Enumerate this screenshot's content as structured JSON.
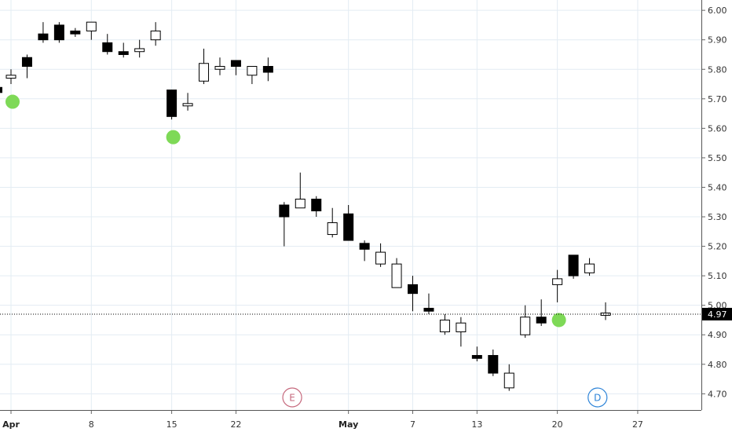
{
  "chart_data": {
    "type": "candlestick",
    "title": "",
    "xlabel": "",
    "ylabel": "",
    "ylim": [
      4.645,
      6.035
    ],
    "grid": true,
    "y_ticks": [
      "6.00",
      "5.90",
      "5.80",
      "5.70",
      "5.60",
      "5.50",
      "5.40",
      "5.30",
      "5.20",
      "5.10",
      "5.00",
      "4.90",
      "4.80",
      "4.70"
    ],
    "x_ticks": [
      {
        "label": "Apr",
        "bar": 0,
        "major": true
      },
      {
        "label": "8",
        "bar": 5,
        "major": false
      },
      {
        "label": "15",
        "bar": 10,
        "major": false
      },
      {
        "label": "22",
        "bar": 14,
        "major": false
      },
      {
        "label": "May",
        "bar": 21,
        "major": true
      },
      {
        "label": "7",
        "bar": 25,
        "major": false
      },
      {
        "label": "13",
        "bar": 29,
        "major": false
      },
      {
        "label": "20",
        "bar": 34,
        "major": false
      },
      {
        "label": "27",
        "bar": 39,
        "major": false
      }
    ],
    "bars": [
      {
        "x": "",
        "o": 5.77,
        "h": 5.8,
        "l": 5.75,
        "c": 5.78
      },
      {
        "x": "",
        "o": 5.84,
        "h": 5.85,
        "l": 5.77,
        "c": 5.81
      },
      {
        "x": "",
        "o": 5.92,
        "h": 5.96,
        "l": 5.89,
        "c": 5.9
      },
      {
        "x": "",
        "o": 5.95,
        "h": 5.96,
        "l": 5.89,
        "c": 5.9
      },
      {
        "x": "",
        "o": 5.93,
        "h": 5.94,
        "l": 5.91,
        "c": 5.92
      },
      {
        "x": "",
        "o": 5.93,
        "h": 5.96,
        "l": 5.9,
        "c": 5.96
      },
      {
        "x": "",
        "o": 5.89,
        "h": 5.92,
        "l": 5.85,
        "c": 5.86
      },
      {
        "x": "",
        "o": 5.86,
        "h": 5.89,
        "l": 5.84,
        "c": 5.85
      },
      {
        "x": "",
        "o": 5.86,
        "h": 5.9,
        "l": 5.84,
        "c": 5.87
      },
      {
        "x": "",
        "o": 5.9,
        "h": 5.96,
        "l": 5.88,
        "c": 5.93
      },
      {
        "x": "",
        "o": 5.73,
        "h": 5.73,
        "l": 5.63,
        "c": 5.64
      },
      {
        "x": "",
        "o": 5.68,
        "h": 5.72,
        "l": 5.66,
        "c": 5.68
      },
      {
        "x": "",
        "o": 5.76,
        "h": 5.87,
        "l": 5.75,
        "c": 5.82
      },
      {
        "x": "",
        "o": 5.8,
        "h": 5.84,
        "l": 5.78,
        "c": 5.81
      },
      {
        "x": "",
        "o": 5.83,
        "h": 5.83,
        "l": 5.78,
        "c": 5.81
      },
      {
        "x": "",
        "o": 5.78,
        "h": 5.81,
        "l": 5.75,
        "c": 5.81
      },
      {
        "x": "",
        "o": 5.81,
        "h": 5.84,
        "l": 5.76,
        "c": 5.79
      },
      {
        "x": "",
        "o": 5.34,
        "h": 5.35,
        "l": 5.2,
        "c": 5.3
      },
      {
        "x": "",
        "o": 5.33,
        "h": 5.45,
        "l": 5.33,
        "c": 5.36
      },
      {
        "x": "",
        "o": 5.36,
        "h": 5.37,
        "l": 5.3,
        "c": 5.32
      },
      {
        "x": "",
        "o": 5.24,
        "h": 5.33,
        "l": 5.23,
        "c": 5.28
      },
      {
        "x": "",
        "o": 5.31,
        "h": 5.34,
        "l": 5.22,
        "c": 5.22
      },
      {
        "x": "",
        "o": 5.21,
        "h": 5.22,
        "l": 5.15,
        "c": 5.19
      },
      {
        "x": "",
        "o": 5.14,
        "h": 5.21,
        "l": 5.13,
        "c": 5.18
      },
      {
        "x": "",
        "o": 5.06,
        "h": 5.16,
        "l": 5.06,
        "c": 5.14
      },
      {
        "x": "",
        "o": 5.07,
        "h": 5.1,
        "l": 4.98,
        "c": 5.04
      },
      {
        "x": "",
        "o": 4.99,
        "h": 5.04,
        "l": 4.97,
        "c": 4.98
      },
      {
        "x": "",
        "o": 4.91,
        "h": 4.97,
        "l": 4.9,
        "c": 4.95
      },
      {
        "x": "",
        "o": 4.91,
        "h": 4.96,
        "l": 4.86,
        "c": 4.94
      },
      {
        "x": "",
        "o": 4.83,
        "h": 4.86,
        "l": 4.81,
        "c": 4.82
      },
      {
        "x": "",
        "o": 4.83,
        "h": 4.85,
        "l": 4.76,
        "c": 4.77
      },
      {
        "x": "",
        "o": 4.72,
        "h": 4.8,
        "l": 4.71,
        "c": 4.77
      },
      {
        "x": "",
        "o": 4.9,
        "h": 5.0,
        "l": 4.89,
        "c": 4.96
      },
      {
        "x": "",
        "o": 4.96,
        "h": 5.02,
        "l": 4.93,
        "c": 4.94
      },
      {
        "x": "",
        "o": 5.07,
        "h": 5.12,
        "l": 5.01,
        "c": 5.09
      },
      {
        "x": "",
        "o": 5.17,
        "h": 5.17,
        "l": 5.09,
        "c": 5.1
      },
      {
        "x": "",
        "o": 5.11,
        "h": 5.16,
        "l": 5.1,
        "c": 5.14
      },
      {
        "x": "",
        "o": 4.97,
        "h": 5.01,
        "l": 4.95,
        "c": 4.97
      }
    ],
    "signals": [
      {
        "bar": 0,
        "price": 5.69
      },
      {
        "bar": 10,
        "price": 5.57
      },
      {
        "bar": 34,
        "price": 4.95
      }
    ],
    "event_markers": [
      {
        "label": "E",
        "bar": 17.5
      },
      {
        "label": "D",
        "bar": 36.5
      }
    ],
    "last_price": {
      "value": 4.97,
      "label": "4.97"
    },
    "colors": {
      "grid": "#e3ecf3",
      "candle": "#000000",
      "signal": "#7ed957",
      "earnings": "#c66a7e",
      "dividend": "#2e84d8",
      "price_label_bg": "#000000",
      "price_label_text": "#ffffff"
    }
  }
}
